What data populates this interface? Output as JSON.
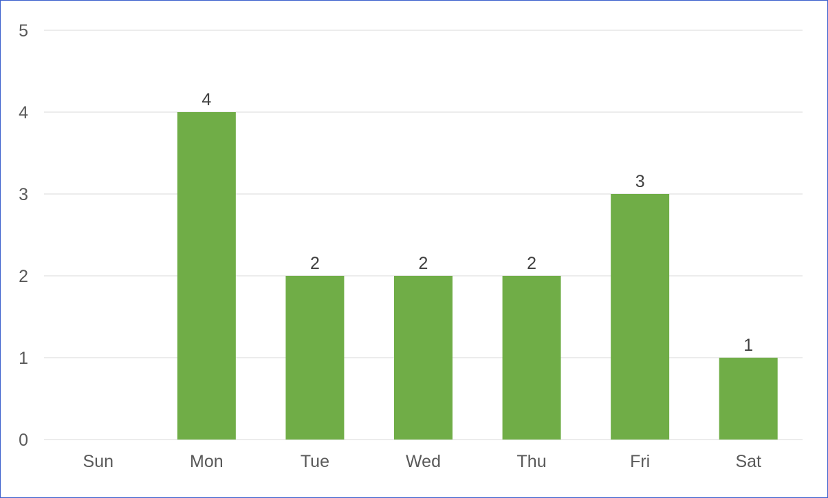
{
  "chart_data": {
    "type": "bar",
    "categories": [
      "Sun",
      "Mon",
      "Tue",
      "Wed",
      "Thu",
      "Fri",
      "Sat"
    ],
    "values": [
      0,
      4,
      2,
      2,
      2,
      3,
      1
    ],
    "data_labels": [
      "",
      "4",
      "2",
      "2",
      "2",
      "3",
      "1"
    ],
    "title": "",
    "xlabel": "",
    "ylabel": "",
    "ylim": [
      0,
      5
    ],
    "yticks": [
      0,
      1,
      2,
      3,
      4,
      5
    ],
    "grid": true,
    "legend": "none",
    "bar_color": "#70ad47",
    "frame_color": "#3a5fcd"
  }
}
